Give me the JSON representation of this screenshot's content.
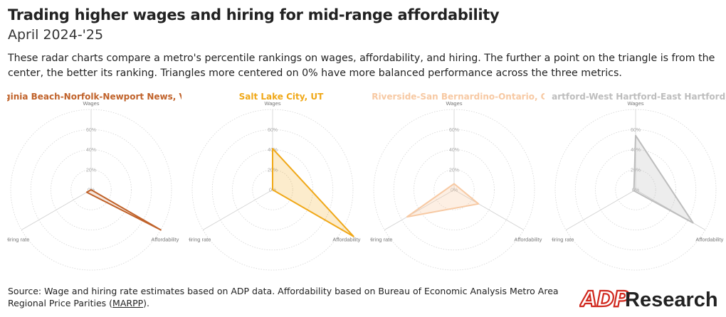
{
  "title": "Trading higher wages and hiring for mid-range affordability",
  "subtitle": "April 2024-'25",
  "description": "These radar charts compare a metro's percentile rankings on wages, affordability, and hiring. The further a point on the triangle is from the center, the better its ranking. Triangles more centered on 0% have more balanced performance across the three metrics.",
  "source": {
    "text_before": "Source: Wage and hiring rate estimates based on ADP data. Affordability based on Bureau of Economic Analysis Metro Area Regional Price Parities (",
    "link_text": "MARPP",
    "text_after": ")."
  },
  "logo": {
    "brand": "ADP",
    "suffix": "Research",
    "brand_color": "#d0271d",
    "suffix_color": "#222222"
  },
  "chart_data": {
    "type": "radar",
    "axes": [
      "Wages",
      "Affordability",
      "Hiring rate"
    ],
    "tick_labels": [
      "0%",
      "20%",
      "40%",
      "60%"
    ],
    "range": [
      0,
      80
    ],
    "grid": "dotted-circles",
    "series": [
      {
        "name": "Virginia Beach-Norfolk-Newport News, VA-NC",
        "color": "#c0622a",
        "fill_opacity": 0.15,
        "values": {
          "Wages": 0,
          "Affordability": 80,
          "Hiring rate": 5
        }
      },
      {
        "name": "Salt Lake City, UT",
        "color": "#f0a818",
        "fill_opacity": 0.22,
        "values": {
          "Wages": 41,
          "Affordability": 93,
          "Hiring rate": 0
        }
      },
      {
        "name": "Riverside-San Bernardino-Ontario, CA",
        "color": "#f7c9a3",
        "fill_opacity": 0.3,
        "values": {
          "Wages": 6,
          "Affordability": 28,
          "Hiring rate": 54
        }
      },
      {
        "name": "Hartford-West Hartford-East Hartford, CT",
        "color": "#bdbdbd",
        "fill_opacity": 0.28,
        "values": {
          "Wages": 54,
          "Affordability": 66,
          "Hiring rate": 2
        }
      }
    ]
  }
}
